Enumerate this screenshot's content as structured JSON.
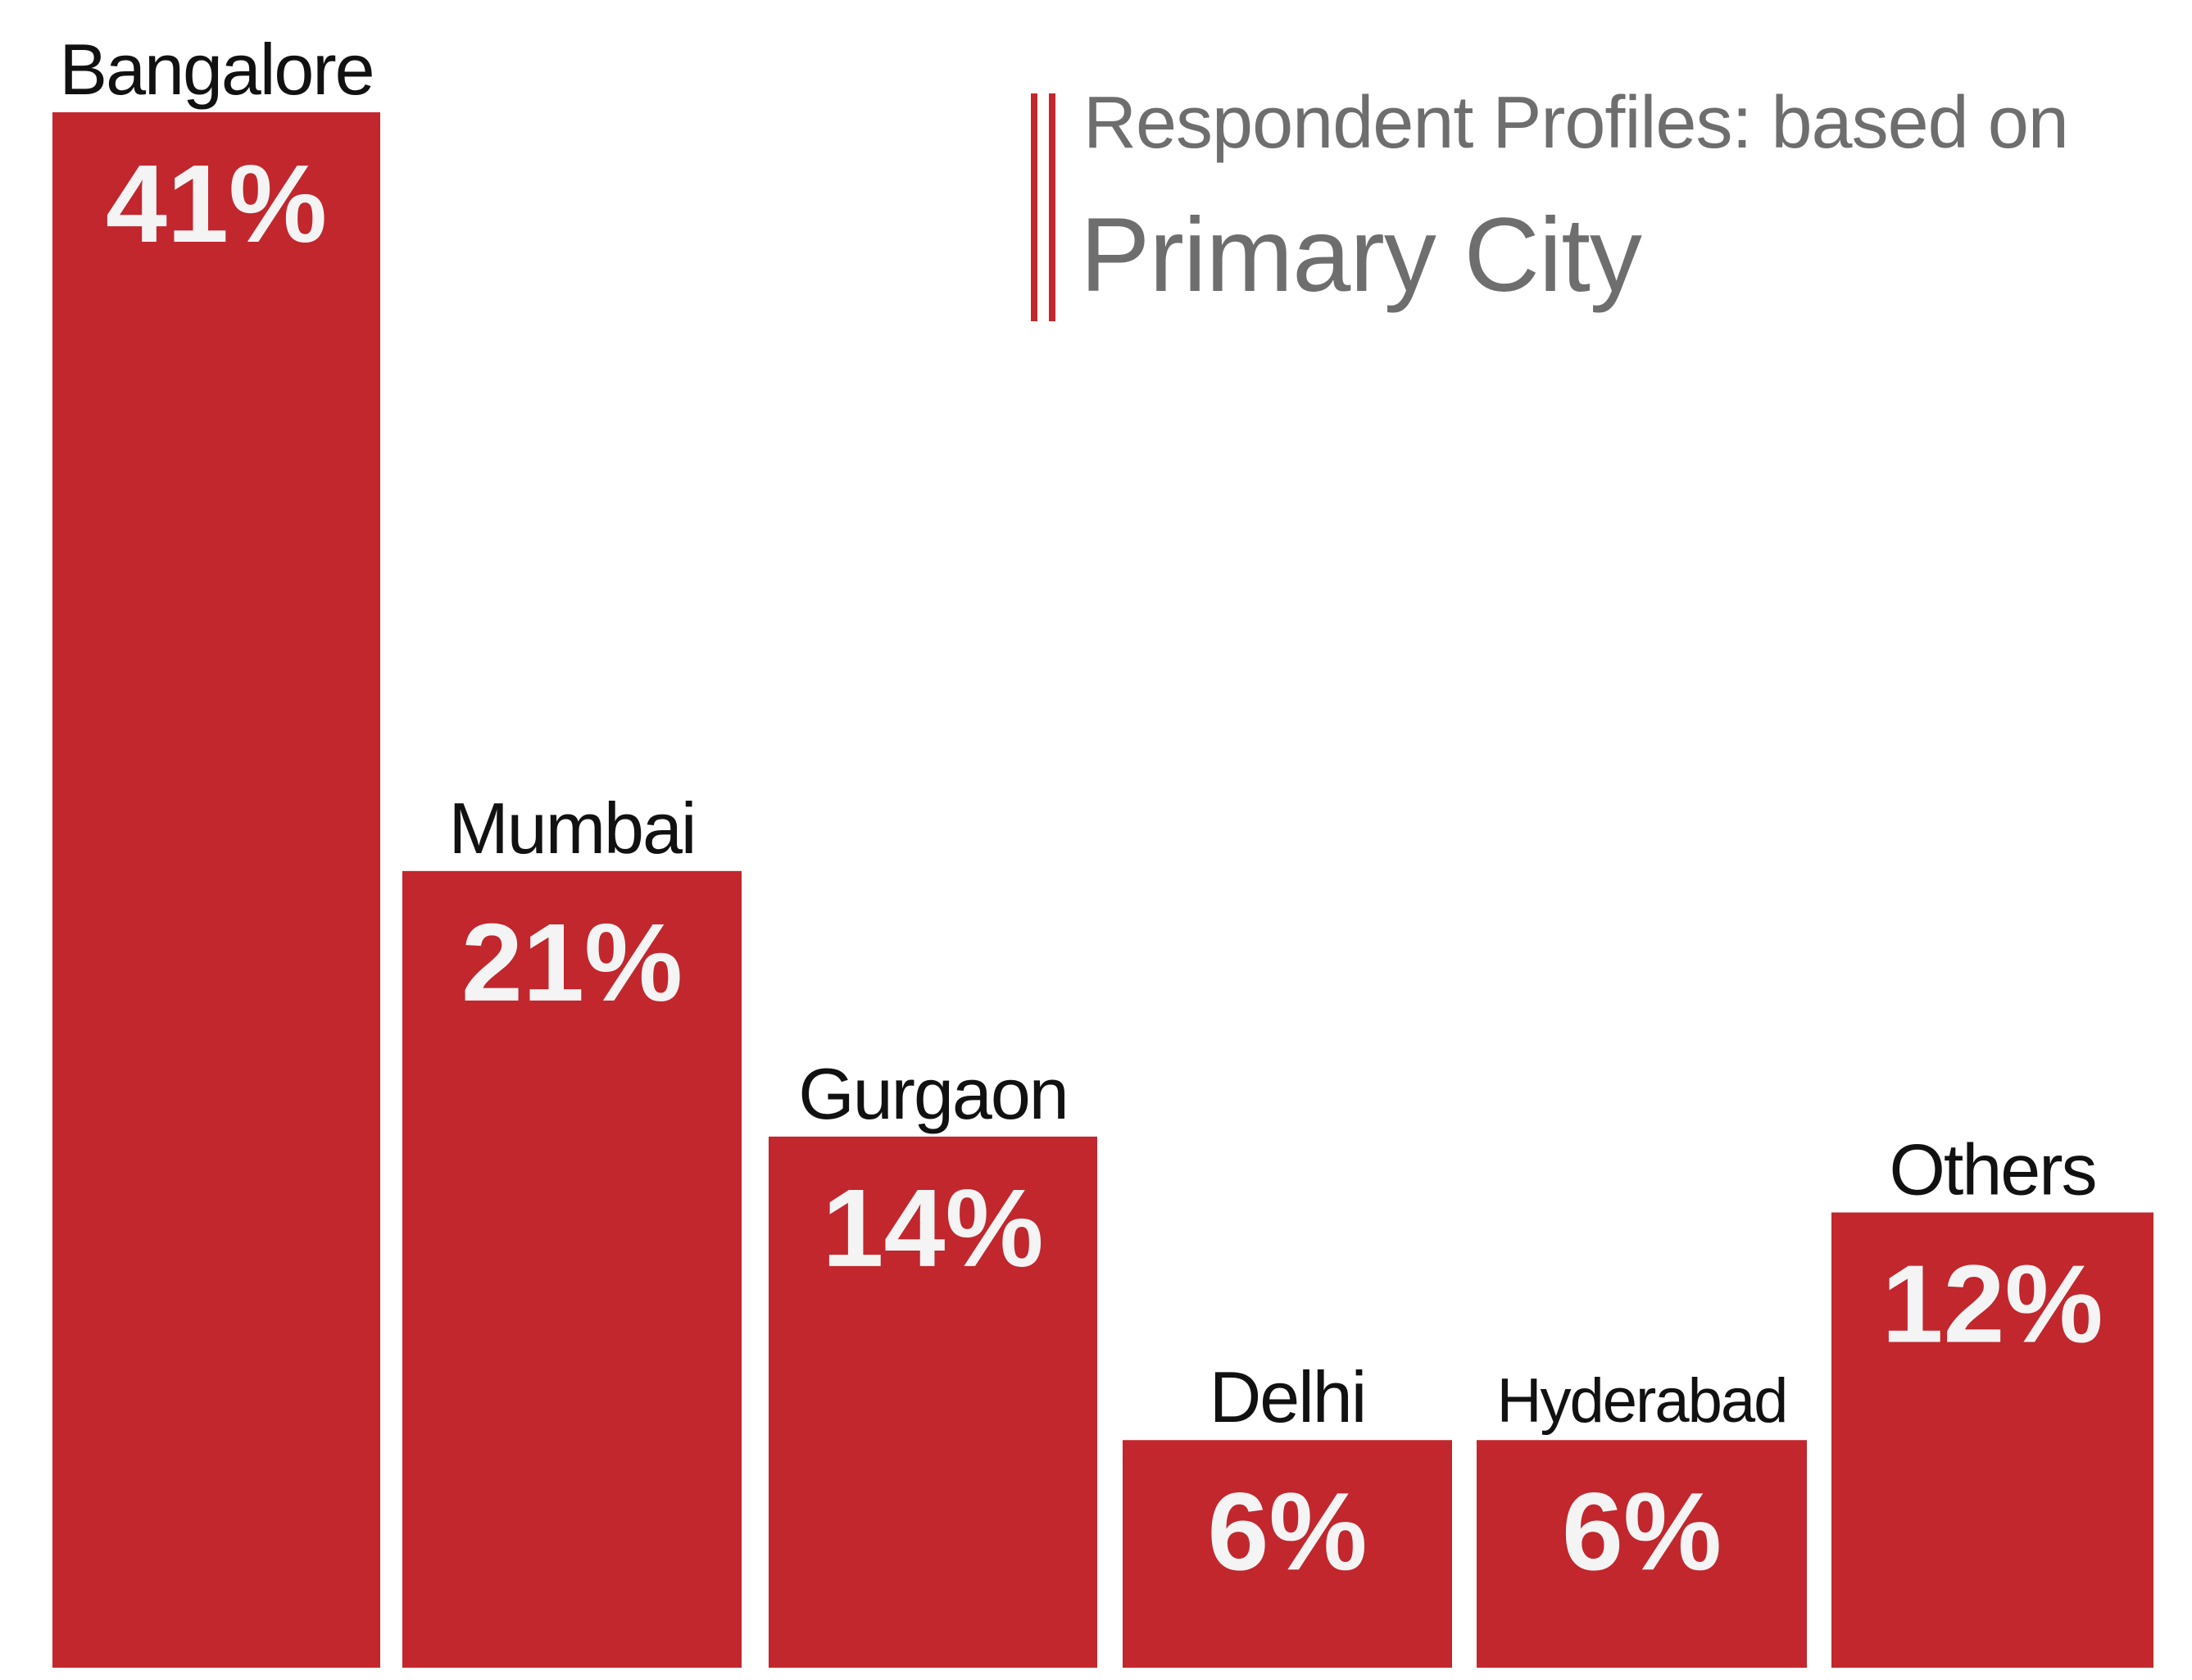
{
  "chart_data": {
    "type": "bar",
    "title": "Respondent Profiles: based on",
    "subtitle": "Primary City",
    "categories": [
      "Bangalore",
      "Mumbai",
      "Gurgaon",
      "Delhi",
      "Hyderabad",
      "Others"
    ],
    "values": [
      41,
      21,
      14,
      6,
      6,
      12
    ],
    "value_labels": [
      "41%",
      "21%",
      "14%",
      "6%",
      "6%",
      "12%"
    ],
    "unit": "%",
    "ylim": [
      0,
      41
    ],
    "grid": false,
    "axes_visible": false,
    "bar_color": "#c1272d",
    "value_label_color": "#f4f4f4",
    "category_label_color": "#111111",
    "title_color": "#6e6e6e",
    "title_rule_color": "#c1272d"
  }
}
